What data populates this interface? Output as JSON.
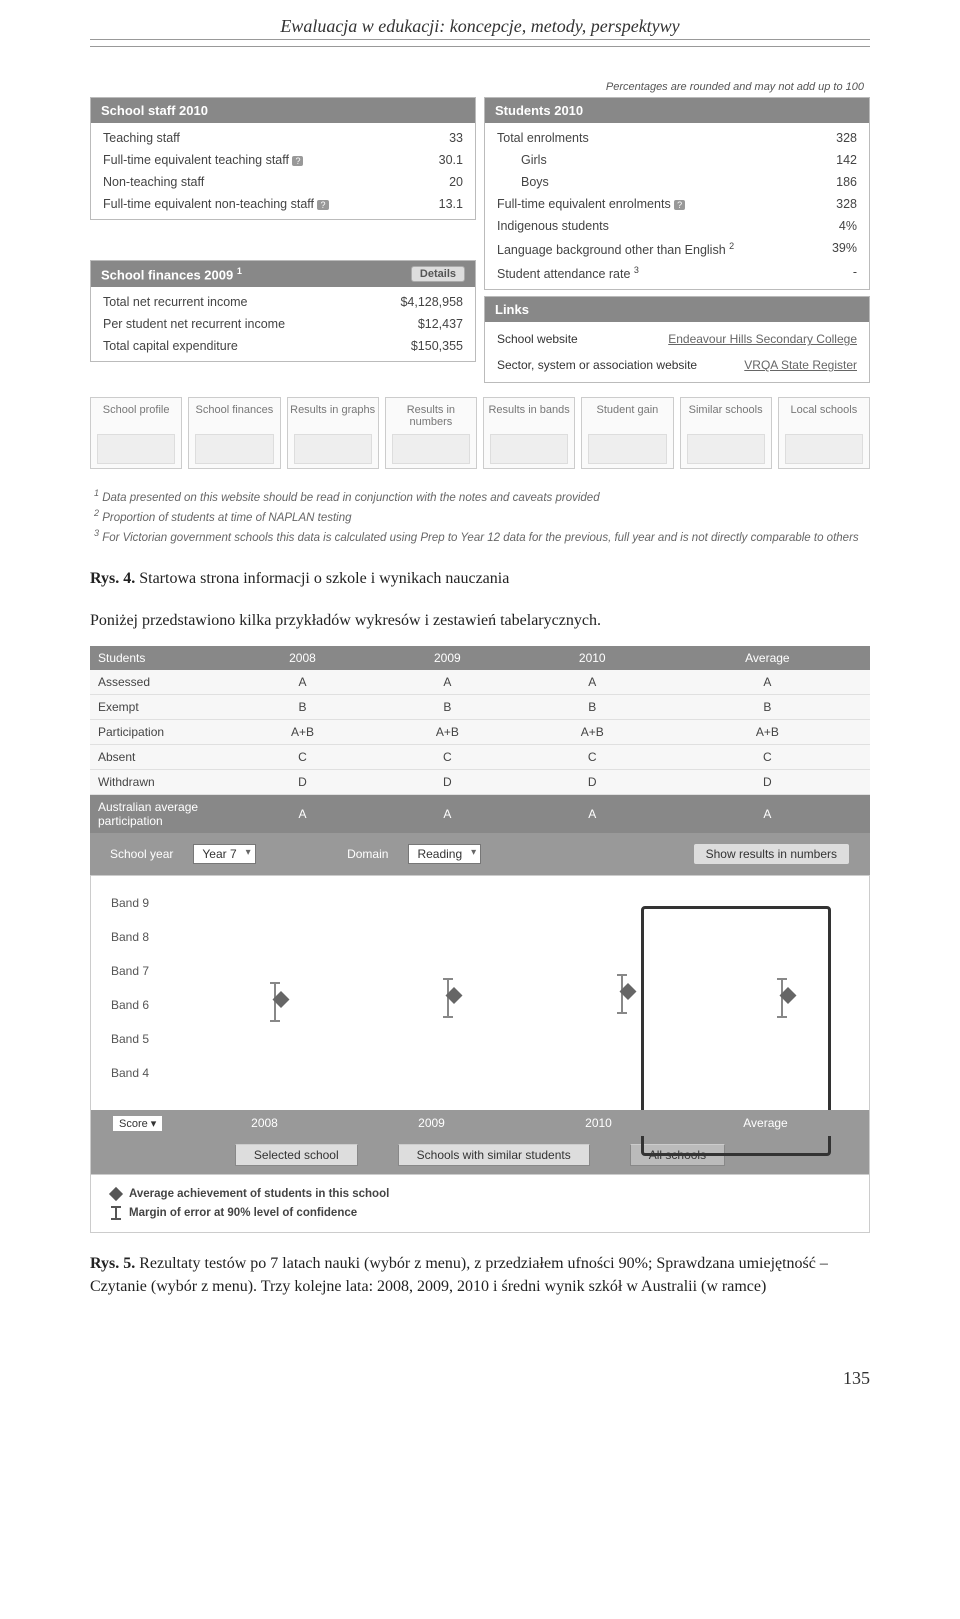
{
  "header": {
    "title": "Ewaluacja w edukacji: koncepcje, metody, perspektywy"
  },
  "fig1": {
    "fineprint": "Percentages are rounded and may not add up to 100",
    "staff": {
      "title": "School staff 2010",
      "rows": [
        {
          "label": "Teaching staff",
          "val": "33"
        },
        {
          "label": "Full-time equivalent teaching staff",
          "help": true,
          "val": "30.1"
        },
        {
          "label": "Non-teaching staff",
          "val": "20"
        },
        {
          "label": "Full-time equivalent non-teaching staff",
          "help": true,
          "val": "13.1"
        }
      ]
    },
    "students": {
      "title": "Students 2010",
      "rows": [
        {
          "label": "Total enrolments",
          "val": "328"
        },
        {
          "label": "Girls",
          "indent": true,
          "val": "142"
        },
        {
          "label": "Boys",
          "indent": true,
          "val": "186"
        },
        {
          "label": "Full-time equivalent enrolments",
          "help": true,
          "val": "328"
        },
        {
          "label": "Indigenous students",
          "val": "4%"
        },
        {
          "label": "Language background other than English",
          "sup": "2",
          "val": "39%"
        },
        {
          "label": "Student attendance rate",
          "sup": "3",
          "val": "-"
        }
      ]
    },
    "finances": {
      "title": "School finances 2009",
      "sup": "1",
      "details": "Details",
      "rows": [
        {
          "label": "Total net recurrent income",
          "val": "$4,128,958"
        },
        {
          "label": "Per student net recurrent income",
          "val": "$12,437"
        },
        {
          "label": "Total capital expenditure",
          "val": "$150,355"
        }
      ]
    },
    "links": {
      "title": "Links",
      "rows": [
        {
          "label": "School website",
          "val": "Endeavour Hills Secondary College"
        },
        {
          "label": "Sector, system or association website",
          "val": "VRQA State Register"
        }
      ]
    },
    "thumbs": [
      "School profile",
      "School finances",
      "Results in graphs",
      "Results in numbers",
      "Results in bands",
      "Student gain",
      "Similar schools",
      "Local schools"
    ],
    "footnotes": [
      "Data presented on this website should be read in conjunction with the notes and caveats provided",
      "Proportion of students at time of NAPLAN testing",
      "For Victorian government schools this data is calculated using Prep to Year 12 data for the previous, full year and is not directly comparable to others"
    ],
    "caption_label": "Rys. 4.",
    "caption_text": "Startowa strona informacji o szkole i wynikach nauczania",
    "body_text": "Poniżej przedstawiono kilka przykładów wykresów i zestawień tabelarycznych."
  },
  "fig2": {
    "table": {
      "headers": [
        "Students",
        "2008",
        "2009",
        "2010",
        "Average"
      ],
      "rows": [
        [
          "Assessed",
          "A",
          "A",
          "A",
          "A"
        ],
        [
          "Exempt",
          "B",
          "B",
          "B",
          "B"
        ],
        [
          "Participation",
          "A+B",
          "A+B",
          "A+B",
          "A+B"
        ],
        [
          "Absent",
          "C",
          "C",
          "C",
          "C"
        ],
        [
          "Withdrawn",
          "D",
          "D",
          "D",
          "D"
        ]
      ],
      "avg_row": [
        "Australian average participation",
        "A",
        "A",
        "A",
        "A"
      ]
    },
    "controls": {
      "year_label": "School year",
      "year_val": "Year 7",
      "domain_label": "Domain",
      "domain_val": "Reading",
      "show_btn": "Show results in numbers"
    },
    "bands": [
      "Band 9",
      "Band 8",
      "Band 7",
      "Band 6",
      "Band 5",
      "Band 4"
    ],
    "xaxis": {
      "score": "Score",
      "labels": [
        "2008",
        "2009",
        "2010",
        "Average"
      ]
    },
    "legend_btns": [
      "Selected school",
      "Schools with similar students",
      "All schools"
    ],
    "legend": {
      "l1": "Average achievement of students in this school",
      "l2": "Margin of error at 90% level of confidence"
    },
    "markers": [
      {
        "x": 14,
        "y": 52
      },
      {
        "x": 40,
        "y": 50
      },
      {
        "x": 66,
        "y": 48
      },
      {
        "x": 90,
        "y": 50
      }
    ],
    "caption_label": "Rys. 5.",
    "caption_text": "Rezultaty testów po 7 latach nauki (wybór z menu), z przedziałem ufności 90%; Sprawdzana umiejętność – Czytanie (wybór z menu). Trzy kolejne lata: 2008, 2009, 2010 i średni wynik szkół w Australii (w ramce)"
  },
  "page_number": "135"
}
